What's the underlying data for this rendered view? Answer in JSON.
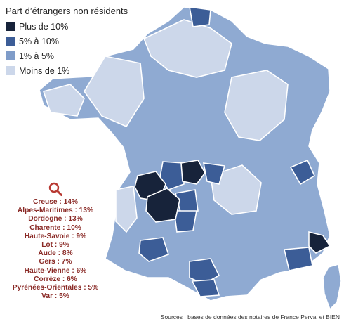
{
  "title": "Part d’étrangers non résidents",
  "legend": [
    {
      "label": "Plus de 10%",
      "color": "#17233a",
      "category": "plus10"
    },
    {
      "label": "5% à 10%",
      "color": "#3c5d97",
      "category": "5to10"
    },
    {
      "label": "1% à 5%",
      "color": "#7f9cc9",
      "category": "1to5"
    },
    {
      "label": "Moins de 1%",
      "color": "#ccd7ea",
      "category": "lt1"
    }
  ],
  "search_icon": "magnifier-icon",
  "ranking": [
    "Creuse : 14%",
    "Alpes-Maritimes : 13%",
    "Dordogne : 13%",
    "Charente : 10%",
    "Haute-Savoie : 9%",
    "Lot : 9%",
    "Aude : 8%",
    "Gers : 7%",
    "Haute-Vienne : 6%",
    "Corrèze : 6%",
    "Pyrénées-Orientales : 5%",
    "Var : 5%"
  ],
  "source": "Sources : bases de données des notaires de France Perval et BIEN",
  "colors": {
    "border": "#ffffff",
    "ranking_text": "#8a2a26",
    "magnifier": "#b83a33"
  }
}
